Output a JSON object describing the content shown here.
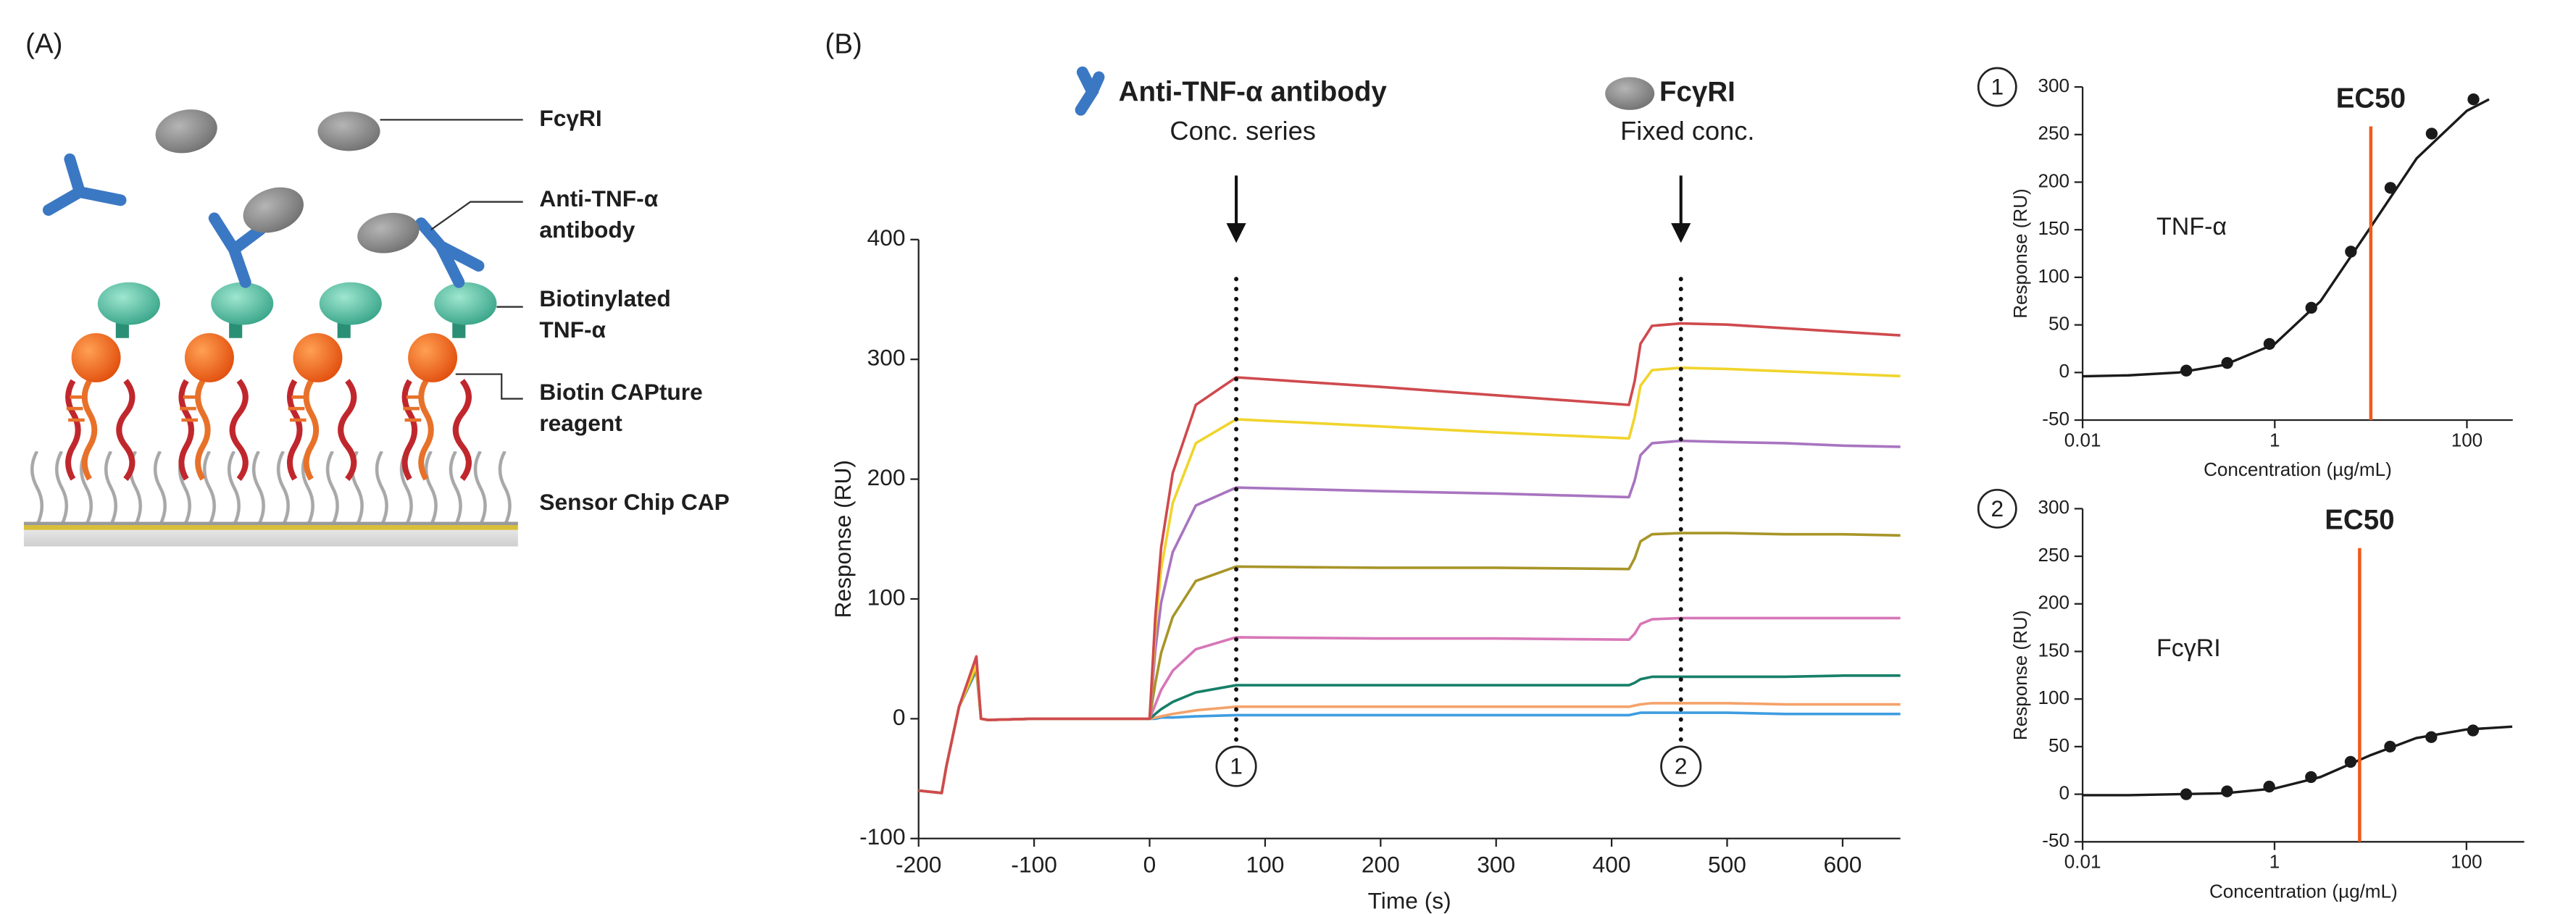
{
  "panel_a": {
    "label": "(A)",
    "parts": [
      {
        "lines": [
          "FcγRI"
        ]
      },
      {
        "lines": [
          "Anti-TNF-α",
          "antibody"
        ]
      },
      {
        "lines": [
          "Biotinylated",
          "TNF-α"
        ]
      },
      {
        "lines": [
          "Biotin CAPture",
          "reagent"
        ]
      },
      {
        "lines": [
          "Sensor Chip CAP"
        ]
      }
    ]
  },
  "panel_b": {
    "label": "(B)"
  },
  "chart_data": [
    {
      "type": "line",
      "xlabel": "Time (s)",
      "ylabel": "Response (RU)",
      "x": [
        -200,
        -180,
        -176,
        -165,
        -150,
        -146,
        -140,
        -100,
        0,
        5,
        10,
        20,
        40,
        75,
        200,
        300,
        415,
        420,
        425,
        435,
        460,
        500,
        550,
        600,
        650
      ],
      "series": [
        {
          "color": "#cf4a4e",
          "values": [
            -60,
            -62,
            -40,
            10,
            52,
            0,
            -1,
            0,
            0,
            86,
            143,
            205,
            262,
            285,
            277,
            270,
            262,
            282,
            313,
            328,
            330,
            329,
            326,
            323,
            320
          ]
        },
        {
          "color": "#f1d42c",
          "values": [
            -60,
            -62,
            -40,
            10,
            45,
            0,
            -1,
            0,
            0,
            75,
            125,
            180,
            230,
            250,
            244,
            239,
            234,
            252,
            278,
            291,
            293,
            292,
            290,
            288,
            286
          ]
        },
        {
          "color": "#a874c0",
          "values": [
            -60,
            -62,
            -40,
            10,
            50,
            0,
            -1,
            0,
            0,
            58,
            97,
            139,
            178,
            193,
            190,
            188,
            185,
            199,
            220,
            230,
            232,
            231,
            230,
            228,
            227
          ]
        },
        {
          "color": "#a89528",
          "values": [
            -60,
            -62,
            -40,
            10,
            42,
            0,
            -1,
            0,
            0,
            30,
            55,
            85,
            115,
            127,
            126,
            126,
            125,
            134,
            148,
            154,
            155,
            155,
            154,
            154,
            153
          ]
        },
        {
          "color": "#d776b7",
          "values": [
            -60,
            -62,
            -40,
            10,
            45,
            0,
            -1,
            0,
            0,
            12,
            24,
            40,
            58,
            68,
            67,
            67,
            66,
            71,
            79,
            83,
            84,
            84,
            84,
            84,
            84
          ]
        },
        {
          "color": "#177f68",
          "values": [
            -60,
            -62,
            -40,
            10,
            45,
            0,
            -1,
            0,
            0,
            4,
            8,
            14,
            22,
            28,
            28,
            28,
            28,
            30,
            33,
            35,
            35,
            35,
            35,
            36,
            36
          ]
        },
        {
          "color": "#f4a26a",
          "values": [
            -60,
            -62,
            -40,
            10,
            45,
            0,
            -1,
            0,
            0,
            1,
            2,
            4,
            7,
            10,
            10,
            10,
            10,
            11,
            12,
            13,
            13,
            13,
            12,
            12,
            12
          ]
        },
        {
          "color": "#3f9de0",
          "values": [
            -60,
            -62,
            -40,
            10,
            40,
            0,
            -1,
            0,
            0,
            0,
            1,
            1,
            2,
            3,
            3,
            3,
            3,
            4,
            5,
            5,
            5,
            5,
            4,
            4,
            4
          ]
        }
      ],
      "xlim": [
        -200,
        650
      ],
      "xticks": [
        -200,
        -100,
        0,
        100,
        200,
        300,
        400,
        500,
        600
      ],
      "ylim": [
        -100,
        400
      ],
      "yticks": [
        -100,
        0,
        100,
        200,
        300,
        400
      ],
      "annotations": [
        {
          "x": 75,
          "marker": "1",
          "title": "Anti-TNF-α antibody",
          "subtitle": "Conc. series"
        },
        {
          "x": 460,
          "marker": "2",
          "title": "FcγRI",
          "subtitle": "Fixed conc."
        }
      ]
    },
    {
      "type": "scatter",
      "marker": "1",
      "annotation": "TNF-α",
      "ec50_label": "EC50",
      "ec50": 10,
      "ec50_color": "#f05a1a",
      "xlabel": "Concentration (µg/mL)",
      "ylabel": "Response (RU)",
      "log_x": true,
      "xlim": [
        0.01,
        300
      ],
      "xticks": [
        0.01,
        1,
        100
      ],
      "ylim": [
        -50,
        300
      ],
      "yticks": [
        -50,
        0,
        50,
        100,
        150,
        200,
        250,
        300
      ],
      "series": [
        {
          "color": "#1a1a1a",
          "x": [
            0.12,
            0.32,
            0.88,
            2.4,
            6.2,
            16,
            43,
            117
          ],
          "values": [
            2,
            10,
            30,
            68,
            127,
            194,
            251,
            287
          ]
        }
      ],
      "fit": {
        "color": "#1a1a1a",
        "x": [
          0.01,
          0.03,
          0.1,
          0.3,
          1,
          3,
          10,
          30,
          100,
          170
        ],
        "values": [
          -4,
          -3,
          0,
          8,
          30,
          75,
          153,
          225,
          275,
          287
        ]
      }
    },
    {
      "type": "scatter",
      "marker": "2",
      "annotation": "FcγRI",
      "ec50_label": "EC50",
      "ec50": 7.7,
      "ec50_color": "#f05a1a",
      "xlabel": "Concentration (µg/mL)",
      "ylabel": "Response (RU)",
      "log_x": true,
      "xlim": [
        0.01,
        400
      ],
      "xticks": [
        0.01,
        1,
        100
      ],
      "ylim": [
        -50,
        300
      ],
      "yticks": [
        -50,
        0,
        50,
        100,
        150,
        200,
        250,
        300
      ],
      "series": [
        {
          "color": "#1a1a1a",
          "x": [
            0.12,
            0.32,
            0.88,
            2.4,
            6.2,
            16,
            43,
            117
          ],
          "values": [
            0,
            3,
            8,
            18,
            34,
            50,
            60,
            67
          ]
        }
      ],
      "fit": {
        "color": "#1a1a1a",
        "x": [
          0.01,
          0.03,
          0.1,
          0.3,
          1,
          3,
          10,
          30,
          100,
          300
        ],
        "values": [
          -1,
          -1,
          0,
          1,
          6,
          18,
          41,
          59,
          68,
          71
        ]
      }
    }
  ]
}
